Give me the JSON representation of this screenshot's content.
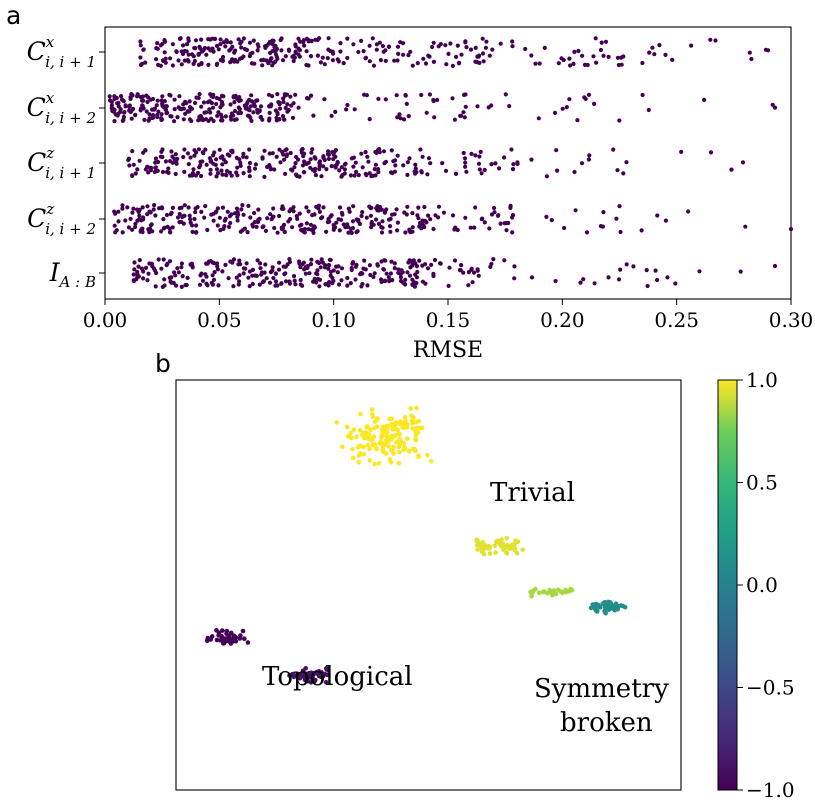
{
  "chart_data": [
    {
      "type": "scatter",
      "panel_label": "a",
      "xlabel": "RMSE",
      "ylabel": "",
      "xlim": [
        0.0,
        0.3
      ],
      "x_ticks": [
        "0.00",
        "0.05",
        "0.10",
        "0.15",
        "0.20",
        "0.25",
        "0.30"
      ],
      "grid": false,
      "legend": "none",
      "point_color": "#440154",
      "categories": [
        {
          "base": "C",
          "sup": "x",
          "sub": "i, i + 1"
        },
        {
          "base": "C",
          "sup": "x",
          "sub": "i, i + 2"
        },
        {
          "base": "C",
          "sup": "z",
          "sub": "i, i + 1"
        },
        {
          "base": "C",
          "sup": "z",
          "sub": "i, i + 2"
        },
        {
          "base": "I",
          "sup": "",
          "sub": "A : B"
        }
      ],
      "series": [
        {
          "category_index": 0,
          "x_min": 0.015,
          "x_max": 0.29,
          "bands": [
            {
              "range": [
                0.015,
                0.1
              ],
              "n": 200
            },
            {
              "range": [
                0.1,
                0.17
              ],
              "n": 75
            },
            {
              "range": [
                0.17,
                0.24
              ],
              "n": 35
            },
            {
              "range": [
                0.24,
                0.29
              ],
              "n": 8
            }
          ],
          "outliers": [
            0.267,
            0.282,
            0.29
          ]
        },
        {
          "category_index": 1,
          "x_min": 0.002,
          "x_max": 0.293,
          "bands": [
            {
              "range": [
                0.002,
                0.085
              ],
              "n": 260
            },
            {
              "range": [
                0.085,
                0.16
              ],
              "n": 40
            },
            {
              "range": [
                0.16,
                0.24
              ],
              "n": 18
            }
          ],
          "outliers": [
            0.262,
            0.292,
            0.293
          ]
        },
        {
          "category_index": 2,
          "x_min": 0.01,
          "x_max": 0.28,
          "bands": [
            {
              "range": [
                0.01,
                0.12
              ],
              "n": 240
            },
            {
              "range": [
                0.12,
                0.17
              ],
              "n": 45
            },
            {
              "range": [
                0.17,
                0.23
              ],
              "n": 20
            }
          ],
          "outliers": [
            0.252,
            0.265,
            0.274,
            0.279
          ]
        },
        {
          "category_index": 3,
          "x_min": 0.004,
          "x_max": 0.3,
          "bands": [
            {
              "range": [
                0.004,
                0.14
              ],
              "n": 290
            },
            {
              "range": [
                0.14,
                0.18
              ],
              "n": 35
            },
            {
              "range": [
                0.18,
                0.25
              ],
              "n": 14
            }
          ],
          "outliers": [
            0.255,
            0.28,
            0.3
          ]
        },
        {
          "category_index": 4,
          "x_min": 0.012,
          "x_max": 0.293,
          "bands": [
            {
              "range": [
                0.012,
                0.14
              ],
              "n": 280
            },
            {
              "range": [
                0.14,
                0.18
              ],
              "n": 30
            },
            {
              "range": [
                0.18,
                0.25
              ],
              "n": 16
            }
          ],
          "outliers": [
            0.26,
            0.278,
            0.293
          ]
        }
      ]
    },
    {
      "type": "scatter",
      "panel_label": "b",
      "xlabel": "",
      "ylabel": "",
      "grid": false,
      "axis_ticks": false,
      "colormap": "viridis",
      "colorbar": {
        "vmin": -1.0,
        "vmax": 1.0,
        "tick_values": [
          1.0,
          0.5,
          0.0,
          -0.5,
          -1.0
        ],
        "tick_labels": [
          "1.0",
          "0.5",
          "0.0",
          "−0.5",
          "−1.0"
        ]
      },
      "annotations": [
        "Trivial",
        "Topological",
        "Symmetry",
        "broken"
      ],
      "clusters": [
        {
          "value": 1.0,
          "n": 160,
          "center": [
            0.42,
            0.2
          ],
          "spread": [
            0.15,
            0.14
          ]
        },
        {
          "value": 0.95,
          "n": 55,
          "center": [
            0.63,
            0.58
          ],
          "spread": [
            0.1,
            0.05
          ]
        },
        {
          "value": 0.85,
          "n": 30,
          "center": [
            0.74,
            0.74
          ],
          "spread": [
            0.09,
            0.03
          ]
        },
        {
          "value": 0.1,
          "n": 60,
          "center": [
            0.86,
            0.79
          ],
          "spread": [
            0.06,
            0.03
          ]
        },
        {
          "value": -1.0,
          "n": 45,
          "center": [
            0.1,
            0.9
          ],
          "spread": [
            0.05,
            0.05
          ]
        },
        {
          "value": -0.9,
          "n": 60,
          "center": [
            0.26,
            1.03
          ],
          "spread": [
            0.08,
            0.04
          ]
        }
      ]
    }
  ]
}
